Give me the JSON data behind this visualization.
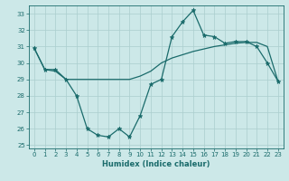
{
  "xlabel": "Humidex (Indice chaleur)",
  "bg_color": "#cce8e8",
  "line_color": "#1a6b6b",
  "xlim": [
    -0.5,
    23.5
  ],
  "ylim": [
    24.8,
    33.5
  ],
  "yticks": [
    25,
    26,
    27,
    28,
    29,
    30,
    31,
    32,
    33
  ],
  "xticks": [
    0,
    1,
    2,
    3,
    4,
    5,
    6,
    7,
    8,
    9,
    10,
    11,
    12,
    13,
    14,
    15,
    16,
    17,
    18,
    19,
    20,
    21,
    22,
    23
  ],
  "humidex": [
    30.9,
    29.6,
    29.6,
    29.0,
    28.0,
    26.0,
    25.6,
    25.5,
    26.0,
    25.5,
    26.8,
    28.7,
    29.0,
    31.6,
    32.5,
    33.2,
    31.7,
    31.6,
    31.2,
    31.3,
    31.3,
    31.0,
    30.0,
    28.9
  ],
  "smooth": [
    30.9,
    29.6,
    29.5,
    29.0,
    29.0,
    29.0,
    29.0,
    29.0,
    29.0,
    29.0,
    29.2,
    29.5,
    30.0,
    30.3,
    30.5,
    30.7,
    30.85,
    31.0,
    31.1,
    31.2,
    31.25,
    31.25,
    31.0,
    28.9
  ],
  "xlabel_fontsize": 6.0,
  "tick_fontsize": 5.0
}
